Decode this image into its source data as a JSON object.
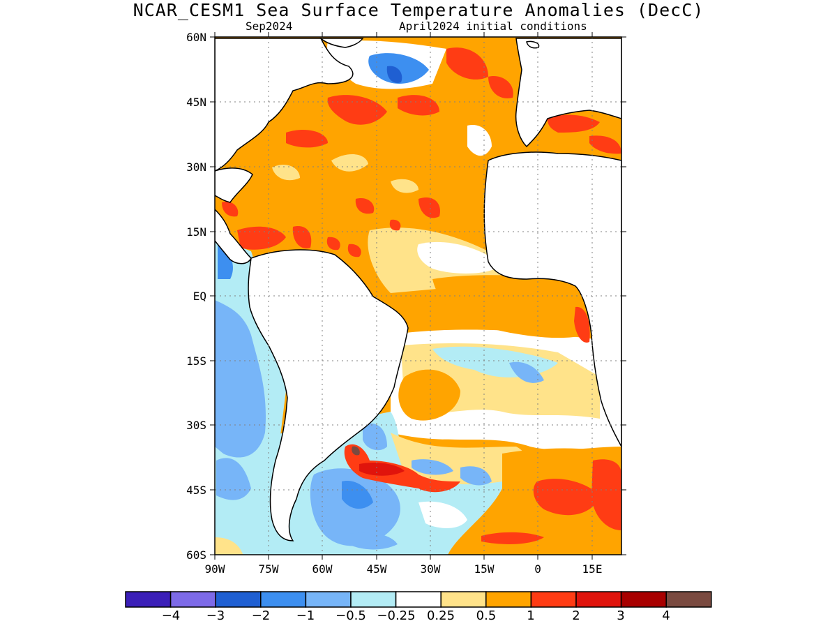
{
  "title": "NCAR_CESM1 Sea Surface Temperature Anomalies (DecC)",
  "subtitle_left": "Sep2024",
  "subtitle_right": "April2024 initial conditions",
  "lat_ticks": [
    "60N",
    "45N",
    "30N",
    "15N",
    "EQ",
    "15S",
    "30S",
    "45S",
    "60S"
  ],
  "lon_ticks": [
    "90W",
    "75W",
    "60W",
    "45W",
    "30W",
    "15W",
    "0",
    "15E"
  ],
  "colorbar": {
    "colors": [
      "#3b1fb8",
      "#7d6ae8",
      "#1f5fd2",
      "#3d8ff0",
      "#77b5f8",
      "#b3ecf5",
      "#ffffff",
      "#ffe38a",
      "#ffa400",
      "#ff3c14",
      "#e0140c",
      "#a80000",
      "#7a4a40"
    ],
    "labels": [
      "−4",
      "−3",
      "−2",
      "−1",
      "−0.5",
      "−0.25",
      "0.25",
      "0.5",
      "1",
      "2",
      "3",
      "4"
    ]
  },
  "fill_colors": {
    "orange": "#ffa400",
    "yellow": "#ffe38a",
    "red": "#ff3c14",
    "darkred": "#e0140c",
    "brown": "#7a4a40",
    "lightblue": "#b3ecf5",
    "blue": "#77b5f8",
    "midblue": "#3d8ff0",
    "darkblue": "#1f5fd2",
    "land": "#ffffff"
  }
}
